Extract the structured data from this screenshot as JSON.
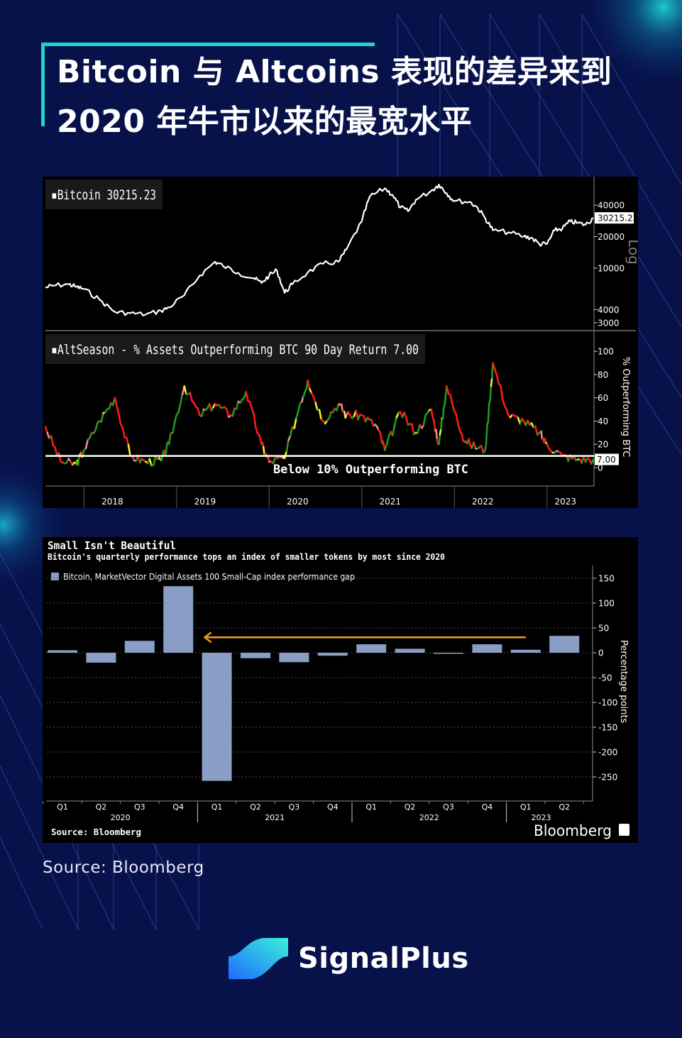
{
  "header": {
    "title_line1": "Bitcoin 与 Altcoins 表现的差异来到",
    "title_line2": "2020 年牛市以来的最宽水平"
  },
  "colors": {
    "background": "#07114a",
    "accent": "#1fd3d1",
    "bar": "#8a9dc4",
    "arrow": "#f2a11e",
    "alt_red": "#ff1a1a",
    "alt_green": "#1f9a1f",
    "alt_yellow": "#f2f21e",
    "alt_pink": "#ff7fb0"
  },
  "chart_data": [
    {
      "type": "line",
      "legend": "Bitcoin 30215.23",
      "scale": "log",
      "scale_label": "Log",
      "last_value": 30215.23,
      "last_value_label": "30215.23",
      "ylim": [
        2600,
        75000
      ],
      "yticks": [
        3000,
        4000,
        10000,
        20000,
        40000
      ],
      "ytick_labels": [
        "3000",
        "4000",
        "10000",
        "20000",
        "40000"
      ],
      "x": [
        "2017-08",
        "2017-09",
        "2017-11",
        "2017-12",
        "2018-01",
        "2018-03",
        "2018-05",
        "2018-07",
        "2018-09",
        "2018-11",
        "2018-12",
        "2019-02",
        "2019-04",
        "2019-06",
        "2019-07",
        "2019-09",
        "2019-11",
        "2019-12",
        "2020-01",
        "2020-02",
        "2020-03",
        "2020-04",
        "2020-06",
        "2020-08",
        "2020-10",
        "2020-11",
        "2021-01",
        "2021-02",
        "2021-04",
        "2021-05",
        "2021-06",
        "2021-07",
        "2021-08",
        "2021-10",
        "2021-11",
        "2021-12",
        "2022-01",
        "2022-03",
        "2022-04",
        "2022-05",
        "2022-06",
        "2022-08",
        "2022-10",
        "2022-11",
        "2022-12",
        "2023-01",
        "2023-02",
        "2023-03",
        "2023-04",
        "2023-05",
        "2023-06",
        "2023-07"
      ],
      "values": [
        6500,
        6800,
        7000,
        6600,
        6300,
        5000,
        3800,
        3700,
        3600,
        3900,
        4200,
        5500,
        8500,
        11500,
        10500,
        9000,
        8000,
        7200,
        8500,
        9500,
        5800,
        7000,
        9100,
        11000,
        11500,
        15000,
        28000,
        48000,
        58000,
        50000,
        38000,
        35000,
        45000,
        55000,
        63000,
        52000,
        44000,
        43000,
        38000,
        30000,
        23000,
        22000,
        20000,
        19500,
        17000,
        17000,
        23000,
        24000,
        28000,
        27000,
        26000,
        30215.23
      ]
    },
    {
      "type": "line",
      "legend": "AltSeason - % Assets Outperforming BTC 90 Day Return 7.00",
      "ylabel": "% Outperforming BTC",
      "last_value": 7.0,
      "last_value_label": "7.00",
      "threshold": 10,
      "threshold_label": "Below 10% Outperforming BTC",
      "ylim": [
        0,
        105
      ],
      "yticks": [
        0,
        20,
        40,
        60,
        80,
        100
      ],
      "ytick_labels": [
        "0",
        "20",
        "40",
        "60",
        "80",
        "100"
      ],
      "xtick_labels": [
        "2018",
        "2019",
        "2020",
        "2021",
        "2022",
        "2023"
      ],
      "x": [
        "2017-08",
        "2017-10",
        "2017-12",
        "2018-01",
        "2018-03",
        "2018-05",
        "2018-07",
        "2018-09",
        "2018-11",
        "2018-12",
        "2019-02",
        "2019-04",
        "2019-06",
        "2019-08",
        "2019-10",
        "2019-12",
        "2020-01",
        "2020-03",
        "2020-05",
        "2020-06",
        "2020-08",
        "2020-10",
        "2020-11",
        "2021-01",
        "2021-03",
        "2021-04",
        "2021-06",
        "2021-08",
        "2021-10",
        "2021-11",
        "2021-12",
        "2022-02",
        "2022-03",
        "2022-05",
        "2022-06",
        "2022-08",
        "2022-10",
        "2022-12",
        "2023-01",
        "2023-03",
        "2023-05",
        "2023-07"
      ],
      "values": [
        35,
        5,
        3,
        15,
        40,
        60,
        10,
        5,
        6,
        20,
        70,
        45,
        55,
        45,
        65,
        20,
        5,
        8,
        55,
        75,
        40,
        55,
        45,
        45,
        35,
        15,
        48,
        30,
        50,
        20,
        70,
        28,
        20,
        15,
        90,
        45,
        40,
        30,
        20,
        10,
        7,
        7
      ]
    },
    {
      "type": "bar",
      "title": "Small Isn't Beautiful",
      "subtitle": "Bitcoin's quarterly performance tops an index of smaller tokens by most since 2020",
      "legend": "Bitcoin, MarketVector Digital Assets 100 Small-Cap index performance gap",
      "ylabel": "Percentage points",
      "ylim": [
        -295,
        175
      ],
      "yticks": [
        150,
        100,
        50,
        0,
        -50,
        -100,
        -150,
        -200,
        -250
      ],
      "ytick_labels": [
        "150",
        "100",
        "50",
        "0",
        "-50",
        "-100",
        "-150",
        "-200",
        "-250"
      ],
      "categories": [
        "Q1",
        "Q2",
        "Q3",
        "Q4",
        "Q1",
        "Q2",
        "Q3",
        "Q4",
        "Q1",
        "Q2",
        "Q3",
        "Q4",
        "Q1",
        "Q2"
      ],
      "year_labels": [
        {
          "label": "2020",
          "index": 1.5
        },
        {
          "label": "2021",
          "index": 5.5
        },
        {
          "label": "2022",
          "index": 9.5
        },
        {
          "label": "2023",
          "index": 12.4
        }
      ],
      "values": [
        5,
        -20,
        24,
        134,
        -258,
        -11,
        -19,
        -6,
        17,
        8,
        -2,
        17,
        6,
        34
      ],
      "annotation": "arrow from 2023 Q1 back to 2020 Q4",
      "source": "Source: Bloomberg",
      "brand": "Bloomberg"
    }
  ],
  "footer": {
    "source": "Source: Bloomberg",
    "brand_name": "SignalPlus"
  }
}
